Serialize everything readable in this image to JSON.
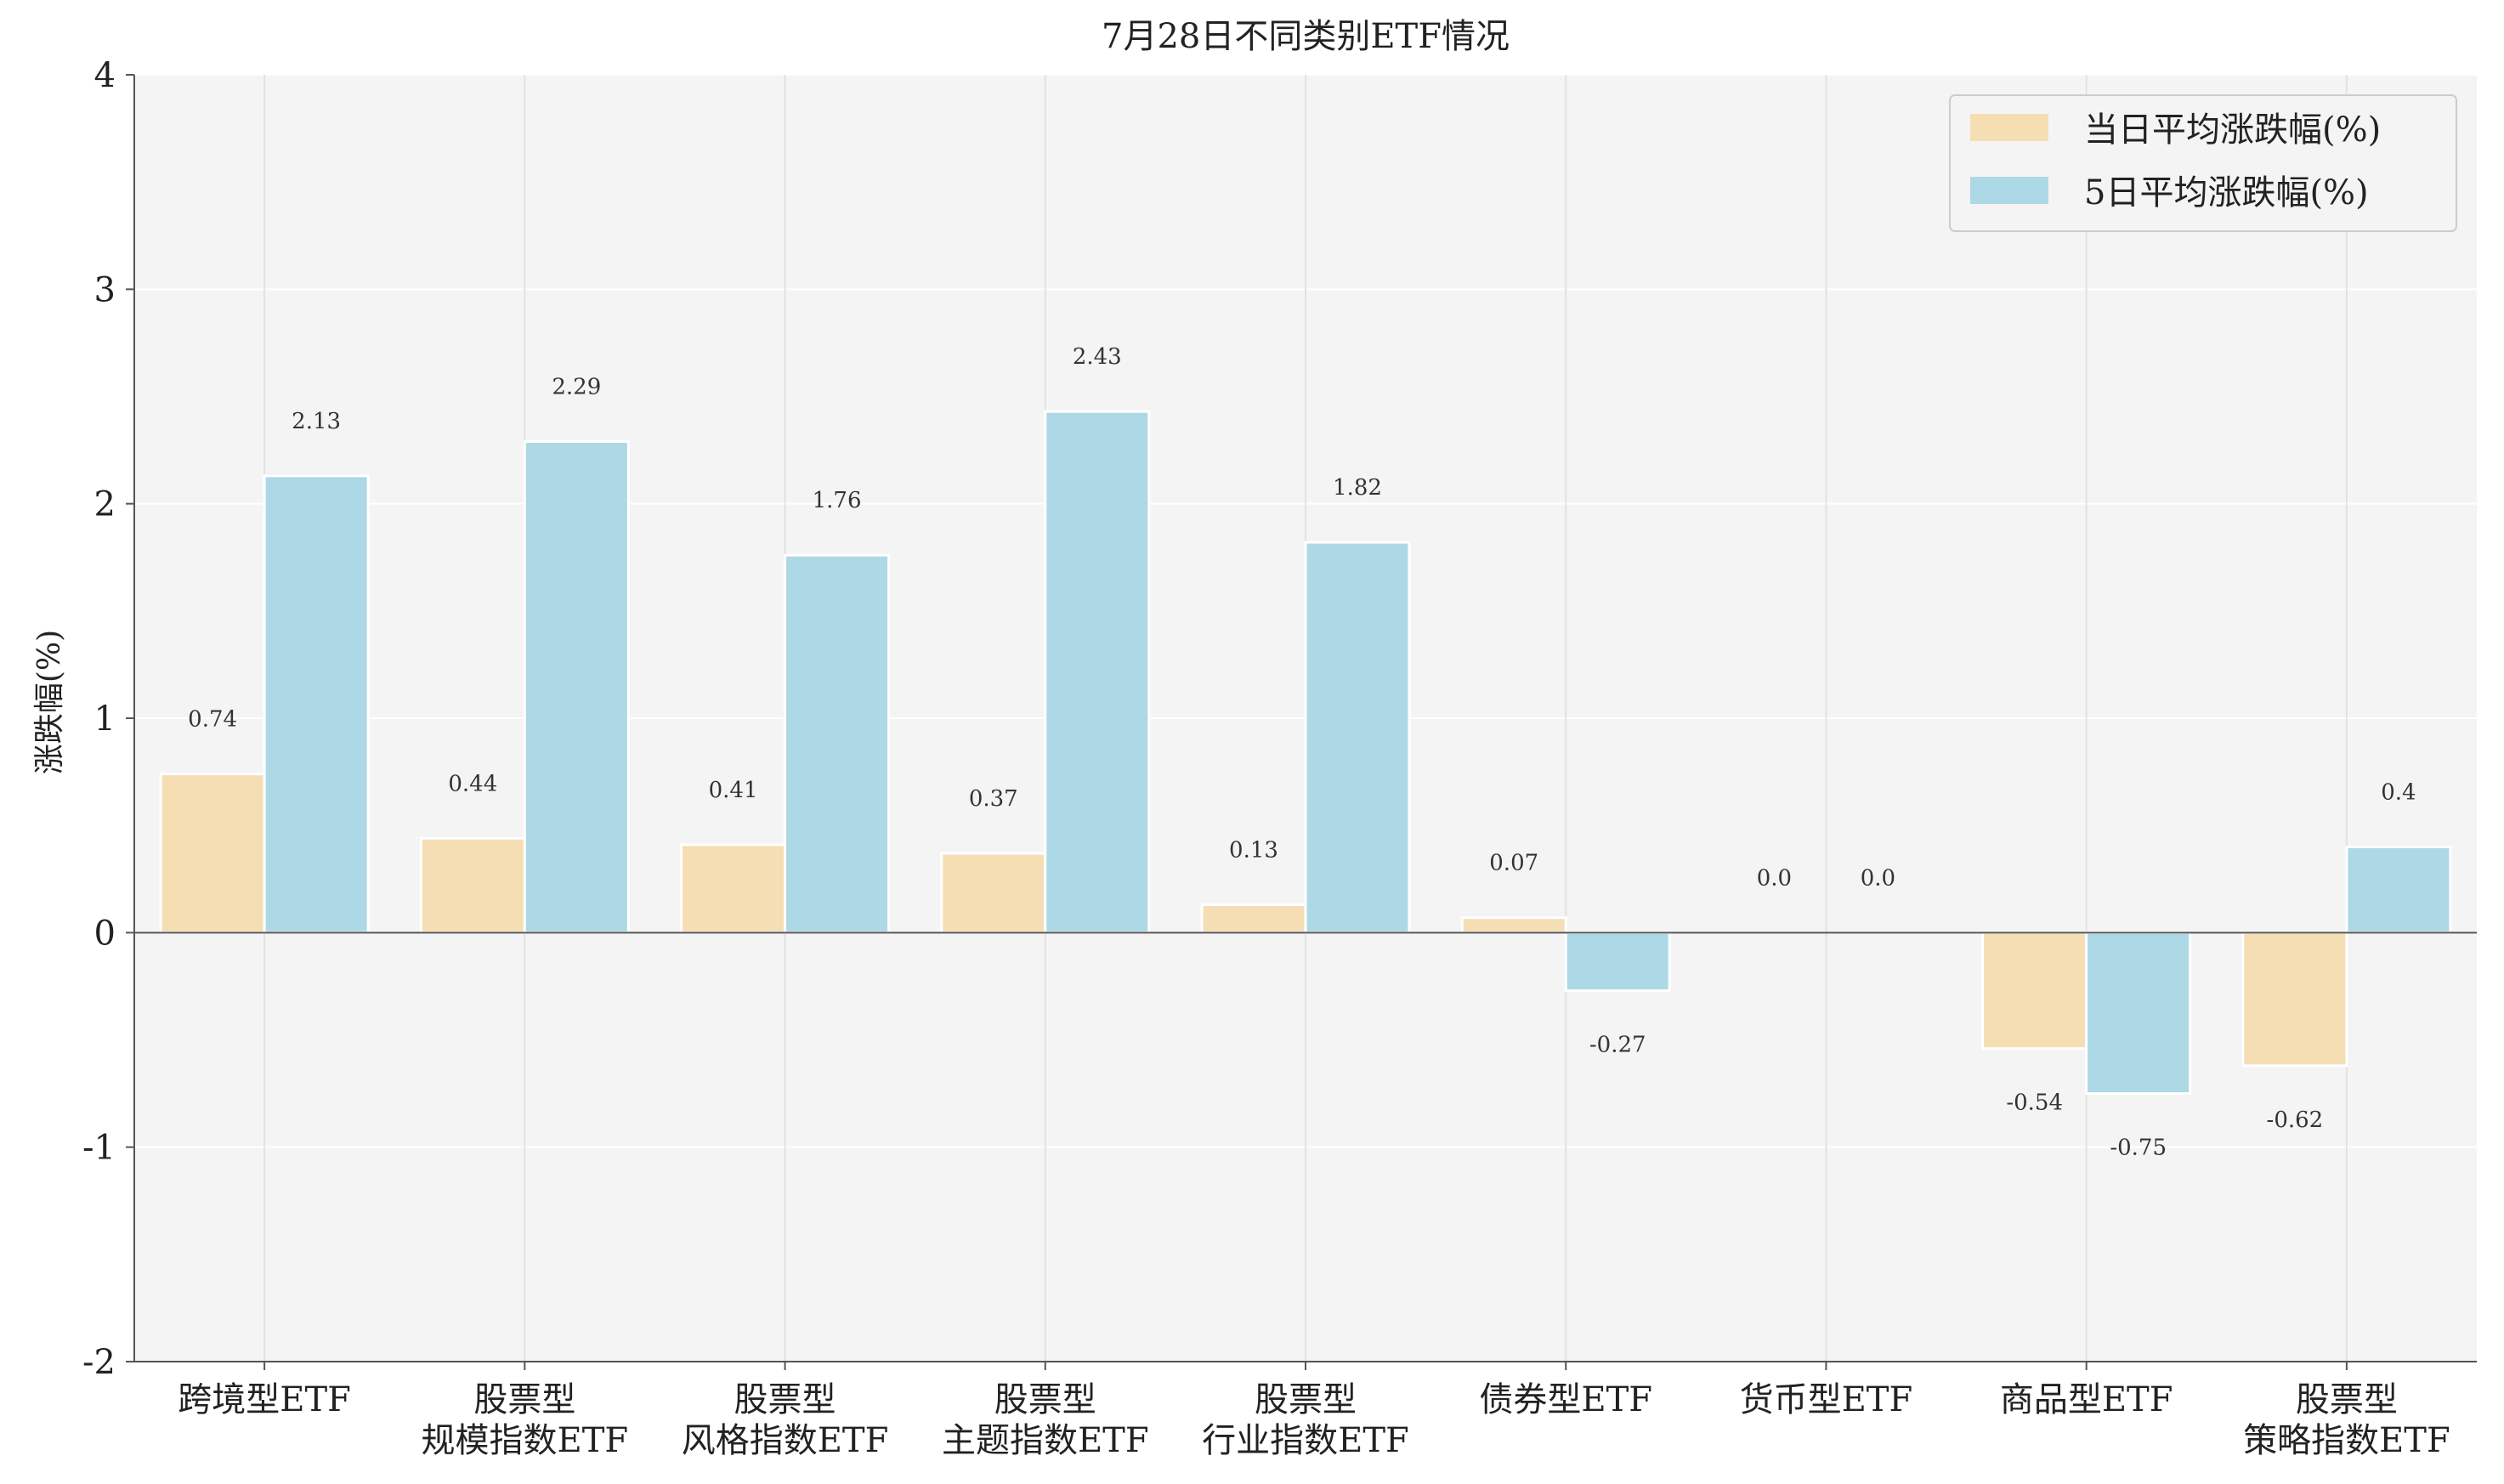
{
  "chart_data": {
    "type": "bar",
    "title": "7月28日不同类别ETF情况",
    "xlabel": "",
    "ylabel": "涨跌幅(%)",
    "ylim": [
      -2,
      4
    ],
    "yticks": [
      "-2",
      "-1",
      "0",
      "1",
      "2",
      "3",
      "4"
    ],
    "grid": true,
    "legend_position": "top-right",
    "categories": [
      [
        "跨境型ETF"
      ],
      [
        "股票型",
        "规模指数ETF"
      ],
      [
        "股票型",
        "风格指数ETF"
      ],
      [
        "股票型",
        "主题指数ETF"
      ],
      [
        "股票型",
        "行业指数ETF"
      ],
      [
        "债券型ETF"
      ],
      [
        "货币型ETF"
      ],
      [
        "商品型ETF"
      ],
      [
        "股票型",
        "策略指数ETF"
      ]
    ],
    "series": [
      {
        "name": "当日平均涨跌幅(%)",
        "color": "#f5deb3",
        "values": [
          0.74,
          0.44,
          0.41,
          0.37,
          0.13,
          0.07,
          0.0,
          -0.54,
          -0.62
        ],
        "labels": [
          "0.74",
          "0.44",
          "0.41",
          "0.37",
          "0.13",
          "0.07",
          "0.0",
          "-0.54",
          "-0.62"
        ]
      },
      {
        "name": "5日平均涨跌幅(%)",
        "color": "#add8e6",
        "values": [
          2.13,
          2.29,
          1.76,
          2.43,
          1.82,
          -0.27,
          0.0,
          -0.75,
          0.4
        ],
        "labels": [
          "2.13",
          "2.29",
          "1.76",
          "2.43",
          "1.82",
          "-0.27",
          "0.0",
          "-0.75",
          "0.4"
        ]
      }
    ]
  }
}
